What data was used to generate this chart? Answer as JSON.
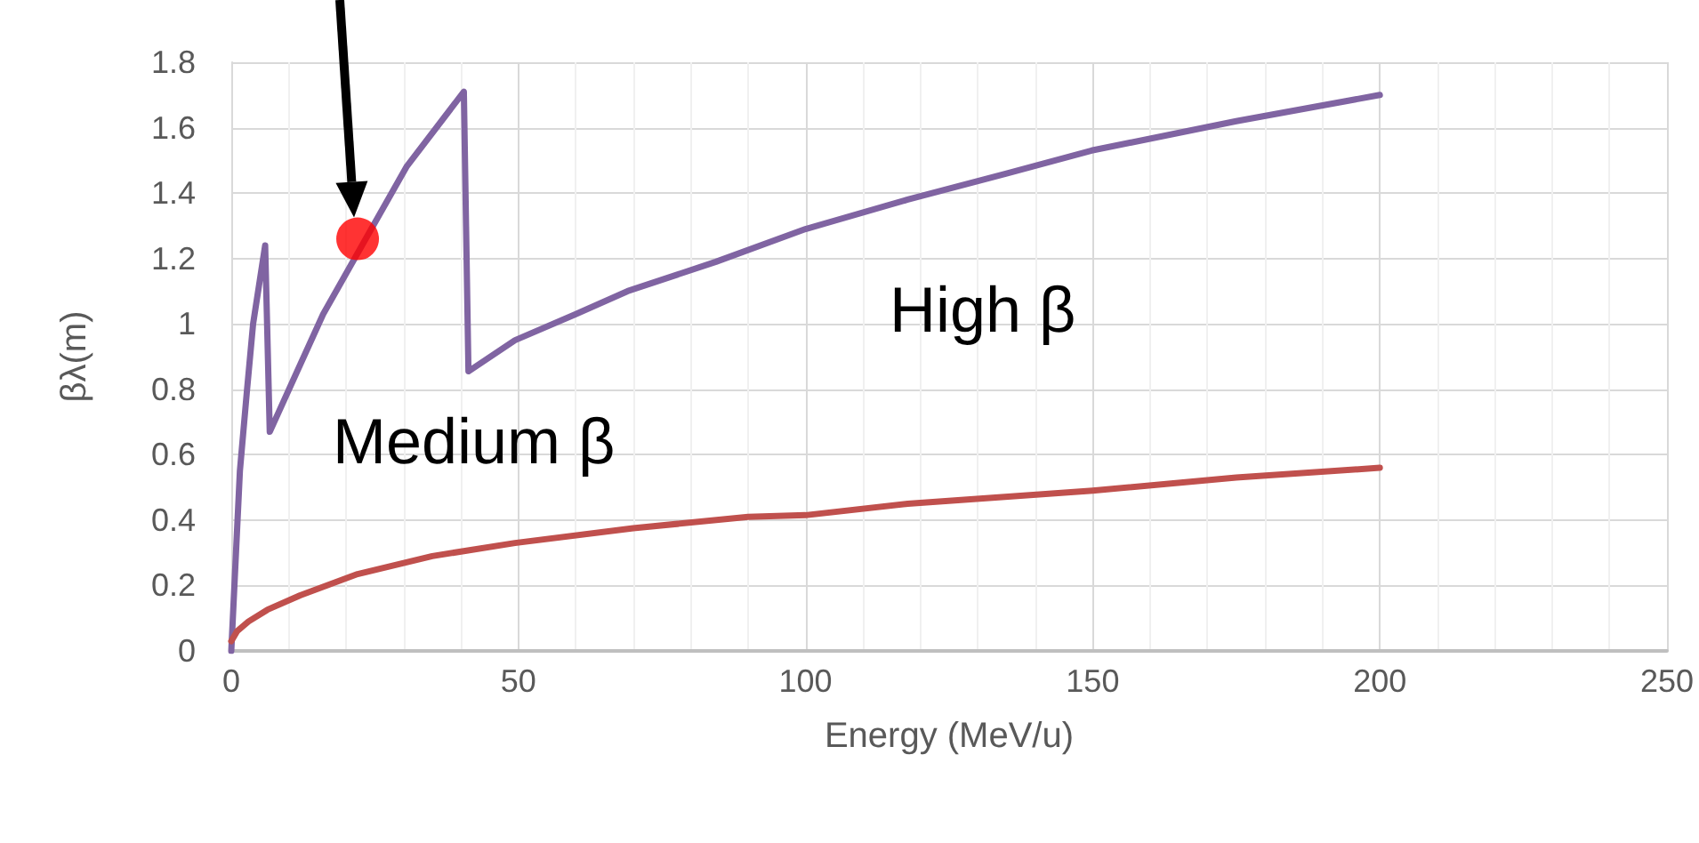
{
  "chart_data": {
    "type": "line",
    "xlabel": "Energy (MeV/u)",
    "ylabel": "βλ(m)",
    "xlim": [
      0,
      250
    ],
    "xticks": [
      0,
      50,
      100,
      150,
      200,
      250
    ],
    "ylim": [
      0,
      1.8
    ],
    "yticks": [
      0,
      0.2,
      0.4,
      0.6,
      0.8,
      1,
      1.2,
      1.4,
      1.6,
      1.8
    ],
    "grid": true,
    "marker": "none",
    "series": [
      {
        "color": "#8064a2",
        "x": [
          0,
          1.5,
          2.7,
          3.8,
          5.9,
          6.7,
          11.6,
          16,
          30.5,
          40.5,
          41.3,
          49.4,
          60,
          69,
          84.4,
          100,
          117.8,
          135,
          149.8,
          175,
          200
        ],
        "values": [
          0,
          0.55,
          0.79,
          1.0,
          1.24,
          0.67,
          0.86,
          1.03,
          1.48,
          1.71,
          0.855,
          0.95,
          1.03,
          1.1,
          1.19,
          1.29,
          1.38,
          1.46,
          1.53,
          1.62,
          1.7
        ]
      },
      {
        "color": "#c0504d",
        "x": [
          0,
          1,
          3,
          6.3,
          12,
          22,
          35,
          49.4,
          70,
          90,
          100,
          117.8,
          150,
          175,
          200
        ],
        "values": [
          0.03,
          0.06,
          0.09,
          0.126,
          0.17,
          0.235,
          0.29,
          0.33,
          0.375,
          0.41,
          0.415,
          0.45,
          0.49,
          0.53,
          0.56
        ]
      },
      {
        "type": "scatter",
        "marker": "circle",
        "color": "#ff0000",
        "x": [
          22
        ],
        "values": [
          1.26
        ]
      }
    ],
    "annotations": [
      "Medium β",
      "High β"
    ]
  }
}
